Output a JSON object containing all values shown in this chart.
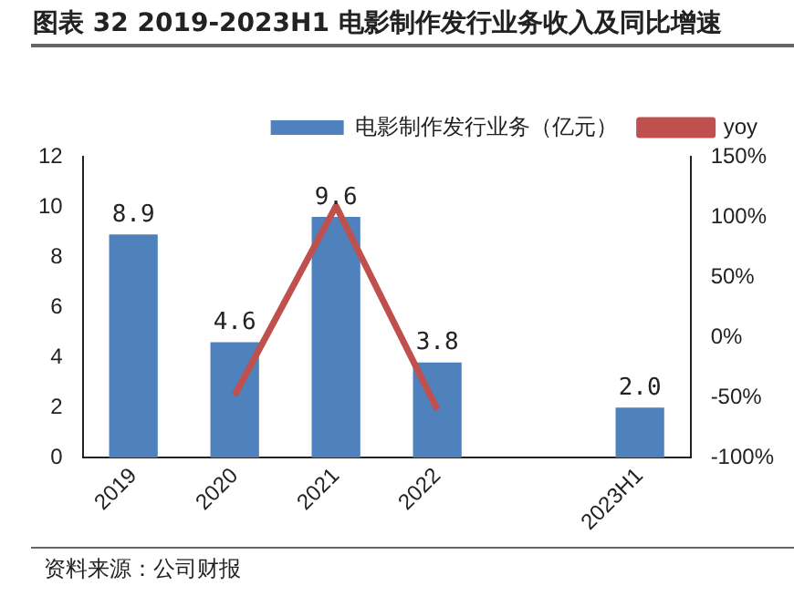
{
  "chart_data": {
    "type": "bar",
    "title": "图表 32 2019-2023H1 电影制作发行业务收入及同比增速",
    "categories": [
      "2019",
      "2020",
      "2021",
      "2022",
      null,
      "2023H1"
    ],
    "series": [
      {
        "name": "电影制作发行业务（亿元）",
        "color": "#4f81bd",
        "values": [
          8.9,
          4.6,
          9.6,
          3.8,
          null,
          2.0
        ],
        "value_labels": [
          "8.9",
          "4.6",
          "9.6",
          "3.8",
          null,
          "2.0"
        ]
      },
      {
        "name": "yoy",
        "type": "line",
        "axis": "y2",
        "color": "#c0504d",
        "values": [
          null,
          -48,
          109,
          -60,
          null,
          null
        ]
      }
    ],
    "ylim": [
      0,
      12
    ],
    "yticks": [
      0,
      2,
      4,
      6,
      8,
      10,
      12
    ],
    "y2lim": [
      -100,
      150
    ],
    "y2ticks": [
      {
        "value": -100,
        "label": "-100%"
      },
      {
        "value": -50,
        "label": "-50%"
      },
      {
        "value": 0,
        "label": "0%"
      },
      {
        "value": 50,
        "label": "50%"
      },
      {
        "value": 100,
        "label": "100%"
      },
      {
        "value": 150,
        "label": "150%"
      }
    ],
    "grid": false,
    "legend": "top",
    "marker": "none",
    "annotations": [
      "资料来源：公司财报"
    ]
  }
}
